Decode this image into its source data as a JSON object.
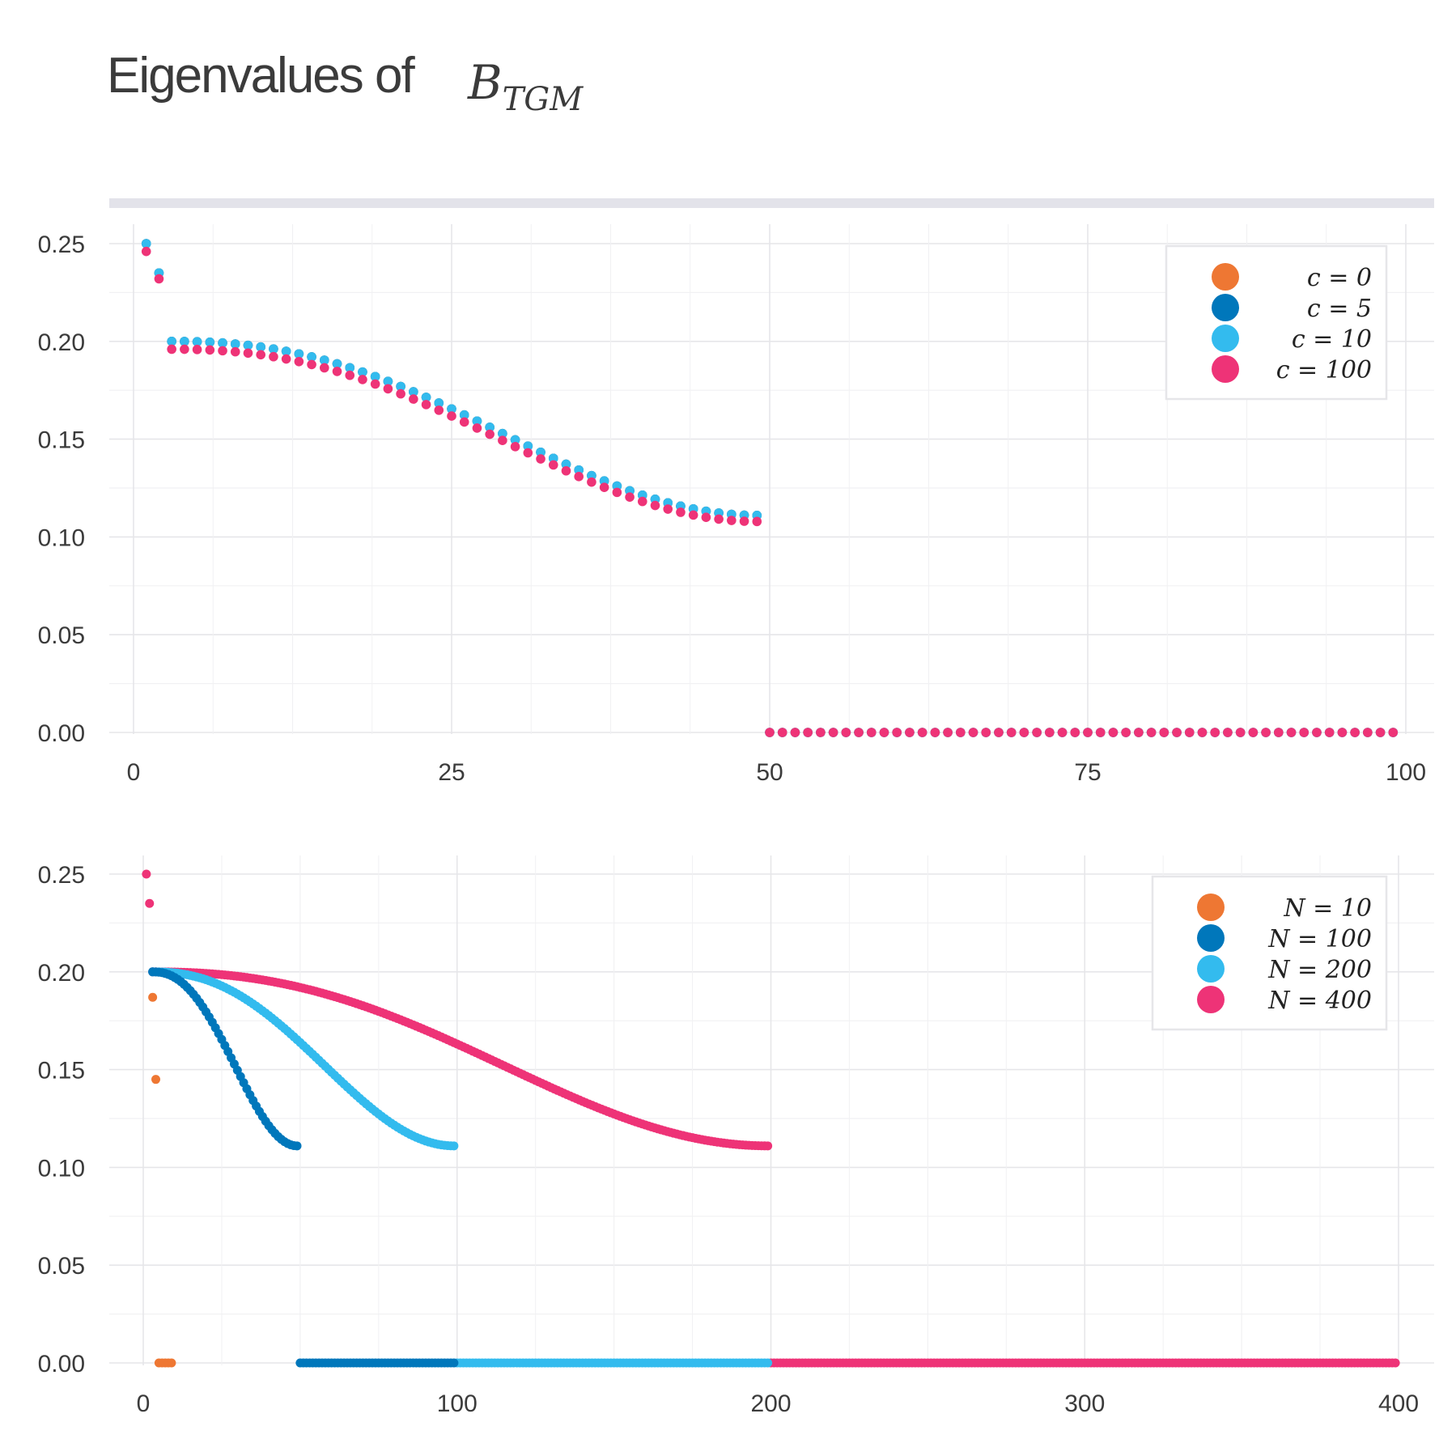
{
  "title": "Eigenvalues of",
  "title_math": {
    "base": "B",
    "sub": "TGM"
  },
  "colors": {
    "orange": "#EE7733",
    "blue": "#0077BB",
    "cyan": "#33BBEE",
    "magenta": "#EE3377",
    "grid_major": "#e6e6e9",
    "grid_minor": "#f1f1f3",
    "strip": "#e3e3ea"
  },
  "chart_data": [
    {
      "type": "scatter",
      "title": "",
      "xlabel": "",
      "ylabel": "",
      "xlim": [
        0,
        100
      ],
      "ylim": [
        0,
        0.25
      ],
      "x_ticks": [
        "0",
        "25",
        "50",
        "75",
        "100"
      ],
      "y_ticks": [
        "0.00",
        "0.05",
        "0.10",
        "0.15",
        "0.20",
        "0.25"
      ],
      "grid": true,
      "legend_position": "top-right",
      "description_of_data": "Eigenvalues indexed 1..99 (N=100); indices 1 and 2 near 0.25 and 0.235, indices 3..49 decrease smoothly from 0.20 to 0.111, indices 50..99 equal 0.",
      "series": [
        {
          "name": "c = 0",
          "color": "#EE7733",
          "x_range": [
            1,
            99
          ],
          "values": {
            "i1": 0.25,
            "i2": 0.235,
            "i3": 0.2,
            "i49": 0.111,
            "i50_to_99": 0.0
          }
        },
        {
          "name": "c = 5",
          "color": "#0077BB",
          "x_range": [
            1,
            99
          ],
          "values": {
            "i1": 0.25,
            "i2": 0.235,
            "i3": 0.2,
            "i49": 0.111,
            "i50_to_99": 0.0
          }
        },
        {
          "name": "c = 10",
          "color": "#33BBEE",
          "x_range": [
            1,
            99
          ],
          "values": {
            "i1": 0.25,
            "i2": 0.235,
            "i3": 0.2,
            "i49": 0.111,
            "i50_to_99": 0.0
          }
        },
        {
          "name": "c = 100",
          "color": "#EE3377",
          "x_range": [
            1,
            99
          ],
          "values": {
            "i1": 0.246,
            "i2": 0.232,
            "i3": 0.198,
            "i49": 0.11,
            "i50_to_99": 0.0
          }
        }
      ]
    },
    {
      "type": "scatter",
      "title": "",
      "xlabel": "",
      "ylabel": "",
      "xlim": [
        0,
        400
      ],
      "ylim": [
        0,
        0.25
      ],
      "x_ticks": [
        "0",
        "100",
        "200",
        "300",
        "400"
      ],
      "y_ticks": [
        "0.00",
        "0.05",
        "0.10",
        "0.15",
        "0.20",
        "0.25"
      ],
      "grid": true,
      "legend_position": "top-right",
      "series": [
        {
          "name": "N = 10",
          "color": "#EE7733",
          "points": [
            [
              1,
              0.25
            ],
            [
              2,
              0.235
            ],
            [
              3,
              0.187
            ],
            [
              4,
              0.145
            ],
            [
              5,
              0.0
            ],
            [
              6,
              0.0
            ],
            [
              7,
              0.0
            ],
            [
              8,
              0.0
            ],
            [
              9,
              0.0
            ]
          ]
        },
        {
          "name": "N = 100",
          "color": "#0077BB",
          "curve": {
            "start": [
              3,
              0.2
            ],
            "end": [
              49,
              0.111
            ]
          },
          "zeros": [
            50,
            99
          ]
        },
        {
          "name": "N = 200",
          "color": "#33BBEE",
          "curve": {
            "start": [
              3,
              0.2
            ],
            "end": [
              99,
              0.111
            ]
          },
          "zeros": [
            100,
            199
          ]
        },
        {
          "name": "N = 400",
          "color": "#EE3377",
          "curve": {
            "start": [
              3,
              0.2
            ],
            "end": [
              199,
              0.111
            ]
          },
          "zeros": [
            200,
            399
          ],
          "extra_points": [
            [
              1,
              0.25
            ],
            [
              2,
              0.235
            ]
          ]
        }
      ]
    }
  ],
  "legend1": [
    {
      "lhs": "c",
      "rhs": "0"
    },
    {
      "lhs": "c",
      "rhs": "5"
    },
    {
      "lhs": "c",
      "rhs": "10"
    },
    {
      "lhs": "c",
      "rhs": "100"
    }
  ],
  "legend2": [
    {
      "lhs": "N",
      "rhs": "10"
    },
    {
      "lhs": "N",
      "rhs": "100"
    },
    {
      "lhs": "N",
      "rhs": "200"
    },
    {
      "lhs": "N",
      "rhs": "400"
    }
  ]
}
